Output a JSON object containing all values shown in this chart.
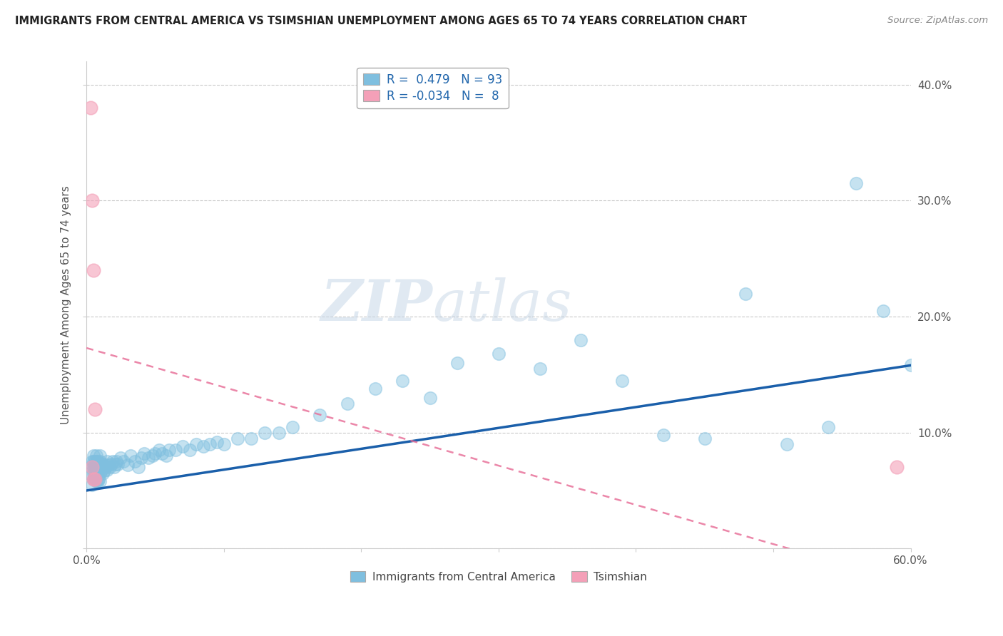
{
  "title": "IMMIGRANTS FROM CENTRAL AMERICA VS TSIMSHIAN UNEMPLOYMENT AMONG AGES 65 TO 74 YEARS CORRELATION CHART",
  "source": "Source: ZipAtlas.com",
  "ylabel": "Unemployment Among Ages 65 to 74 years",
  "xlim": [
    0.0,
    0.6
  ],
  "ylim": [
    0.0,
    0.42
  ],
  "xtick_positions": [
    0.0,
    0.1,
    0.2,
    0.3,
    0.4,
    0.5,
    0.6
  ],
  "xtick_labels": [
    "0.0%",
    "",
    "",
    "",
    "",
    "",
    "60.0%"
  ],
  "ytick_positions": [
    0.0,
    0.1,
    0.2,
    0.3,
    0.4
  ],
  "ytick_labels": [
    "",
    "10.0%",
    "20.0%",
    "30.0%",
    "40.0%"
  ],
  "blue_color": "#7fbfdf",
  "pink_color": "#f4a0b8",
  "blue_line_color": "#1a5faa",
  "pink_line_color": "#e8729a",
  "watermark_zip": "ZIP",
  "watermark_atlas": "atlas",
  "legend1_text": "R =  0.479   N = 93",
  "legend2_text": "R = -0.034   N =  8",
  "blue_x": [
    0.002,
    0.003,
    0.004,
    0.004,
    0.005,
    0.005,
    0.005,
    0.005,
    0.005,
    0.006,
    0.006,
    0.006,
    0.006,
    0.007,
    0.007,
    0.007,
    0.007,
    0.007,
    0.008,
    0.008,
    0.008,
    0.008,
    0.009,
    0.009,
    0.009,
    0.01,
    0.01,
    0.01,
    0.01,
    0.01,
    0.011,
    0.011,
    0.012,
    0.012,
    0.013,
    0.013,
    0.014,
    0.015,
    0.015,
    0.016,
    0.017,
    0.018,
    0.019,
    0.02,
    0.021,
    0.022,
    0.023,
    0.025,
    0.027,
    0.03,
    0.032,
    0.035,
    0.038,
    0.04,
    0.042,
    0.045,
    0.048,
    0.05,
    0.053,
    0.055,
    0.058,
    0.06,
    0.065,
    0.07,
    0.075,
    0.08,
    0.085,
    0.09,
    0.095,
    0.1,
    0.11,
    0.12,
    0.13,
    0.14,
    0.15,
    0.17,
    0.19,
    0.21,
    0.23,
    0.25,
    0.27,
    0.3,
    0.33,
    0.36,
    0.39,
    0.42,
    0.45,
    0.48,
    0.51,
    0.54,
    0.56,
    0.58,
    0.6
  ],
  "blue_y": [
    0.065,
    0.07,
    0.055,
    0.075,
    0.06,
    0.065,
    0.07,
    0.075,
    0.08,
    0.06,
    0.065,
    0.07,
    0.075,
    0.058,
    0.065,
    0.07,
    0.075,
    0.08,
    0.058,
    0.065,
    0.07,
    0.075,
    0.06,
    0.067,
    0.073,
    0.058,
    0.065,
    0.07,
    0.075,
    0.08,
    0.067,
    0.073,
    0.065,
    0.072,
    0.067,
    0.073,
    0.07,
    0.068,
    0.075,
    0.072,
    0.07,
    0.073,
    0.075,
    0.07,
    0.073,
    0.075,
    0.073,
    0.078,
    0.075,
    0.072,
    0.08,
    0.075,
    0.07,
    0.078,
    0.082,
    0.078,
    0.08,
    0.082,
    0.085,
    0.082,
    0.08,
    0.085,
    0.085,
    0.088,
    0.085,
    0.09,
    0.088,
    0.09,
    0.092,
    0.09,
    0.095,
    0.095,
    0.1,
    0.1,
    0.105,
    0.115,
    0.125,
    0.138,
    0.145,
    0.13,
    0.16,
    0.168,
    0.155,
    0.18,
    0.145,
    0.098,
    0.095,
    0.22,
    0.09,
    0.105,
    0.315,
    0.205,
    0.158
  ],
  "pink_x": [
    0.003,
    0.004,
    0.004,
    0.005,
    0.005,
    0.006,
    0.006,
    0.59
  ],
  "pink_y": [
    0.38,
    0.3,
    0.07,
    0.24,
    0.06,
    0.12,
    0.06,
    0.07
  ],
  "blue_trend": [
    0.0,
    0.6,
    0.05,
    0.158
  ],
  "pink_trend": [
    0.0,
    0.6,
    0.173,
    -0.03
  ]
}
